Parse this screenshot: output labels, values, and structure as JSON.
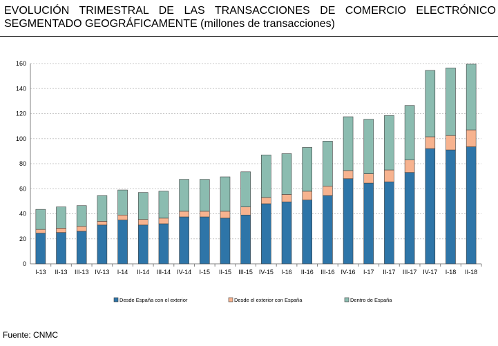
{
  "title": {
    "line1": "EVOLUCIÓN TRIMESTRAL DE LAS TRANSACCIONES DE COMERCIO ELECTRÓNICO",
    "line2_main": "SEGMENTADO GEOGRÁFICAMENTE",
    "line2_unit": " (millones de transacciones)"
  },
  "source": "Fuente: CNMC",
  "chart_data": {
    "type": "bar",
    "stacked": true,
    "title": "EVOLUCIÓN TRIMESTRAL DE LAS TRANSACCIONES DE COMERCIO ELECTRÓNICO SEGMENTADO GEOGRÁFICAMENTE (millones de transacciones)",
    "xlabel": "",
    "ylabel": "",
    "ylim": [
      0,
      160
    ],
    "yticks": [
      0,
      20,
      40,
      60,
      80,
      100,
      120,
      140,
      160
    ],
    "grid": true,
    "legend_position": "bottom",
    "categories": [
      "I-13",
      "II-13",
      "III-13",
      "IV-13",
      "I-14",
      "II-14",
      "III-14",
      "IV-14",
      "I-15",
      "II-15",
      "III-15",
      "IV-15",
      "I-16",
      "II-16",
      "III-16",
      "IV-16",
      "I-17",
      "II-17",
      "III-17",
      "IV-17",
      "I-18",
      "II-18"
    ],
    "series": [
      {
        "name": "Desde España con el exterior",
        "color": "#2e75a8",
        "values": [
          24.5,
          25,
          26,
          31,
          35,
          31,
          32,
          37.5,
          37.5,
          36.5,
          39,
          48,
          49.5,
          51,
          54.5,
          68,
          64.5,
          65.5,
          73,
          92,
          91,
          93.5
        ]
      },
      {
        "name": "Desde el exterior con España",
        "color": "#f7b38f",
        "values": [
          3,
          3.5,
          4,
          3,
          4,
          4.5,
          4.5,
          4.5,
          4.5,
          5.5,
          6.5,
          5,
          6,
          7,
          7.5,
          6.5,
          7.5,
          9.5,
          10,
          9.5,
          11.5,
          13.5
        ]
      },
      {
        "name": "Dentro de España",
        "color": "#8bbcb0",
        "values": [
          16,
          17,
          16.5,
          20.5,
          20,
          21.5,
          21.5,
          25.5,
          25.5,
          27.5,
          28,
          34,
          32.5,
          35,
          36,
          43,
          43.5,
          43.5,
          43.5,
          53,
          54,
          52.5
        ]
      }
    ]
  }
}
